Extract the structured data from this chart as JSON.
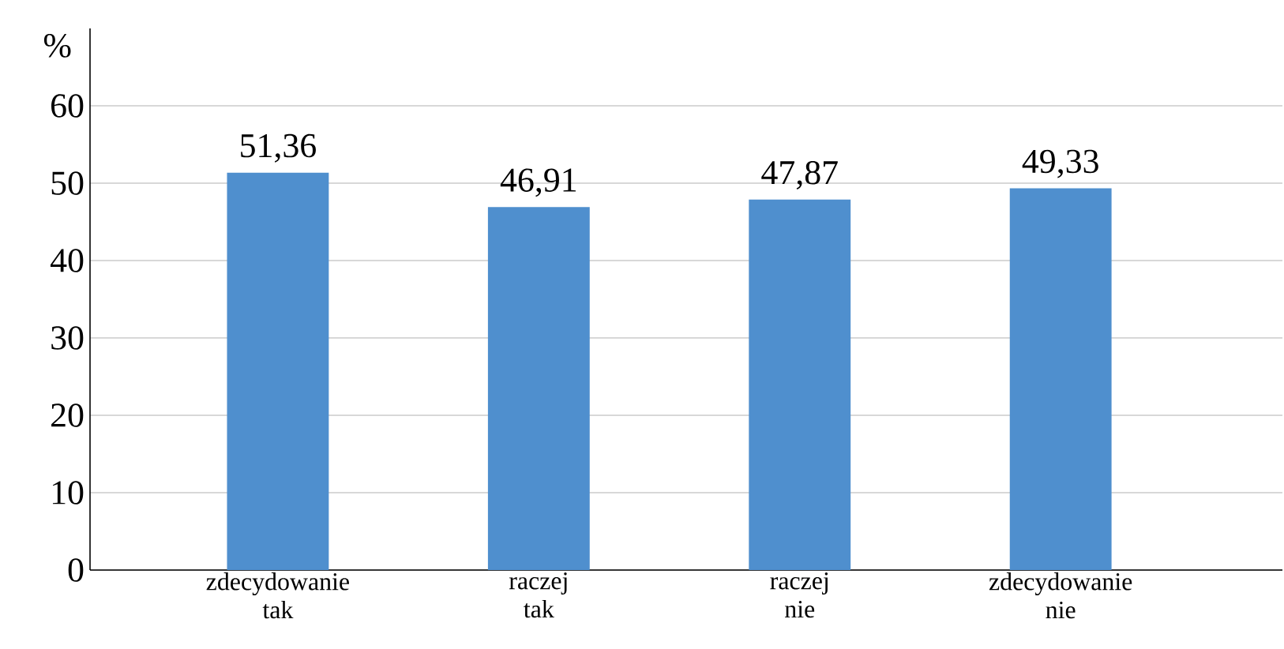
{
  "chart_data": {
    "type": "bar",
    "ylabel": "%",
    "categories": [
      "zdecydowanie tak",
      "raczej tak",
      "raczej nie",
      "zdecydowanie nie"
    ],
    "values": [
      51.36,
      46.91,
      47.87,
      49.33
    ],
    "value_labels": [
      "51,36",
      "46,91",
      "47,87",
      "49,33"
    ],
    "color": "#4f8fce",
    "ylim": [
      0,
      70
    ],
    "yticks": [
      0,
      10,
      20,
      30,
      40,
      50,
      60
    ],
    "grid": "y"
  }
}
